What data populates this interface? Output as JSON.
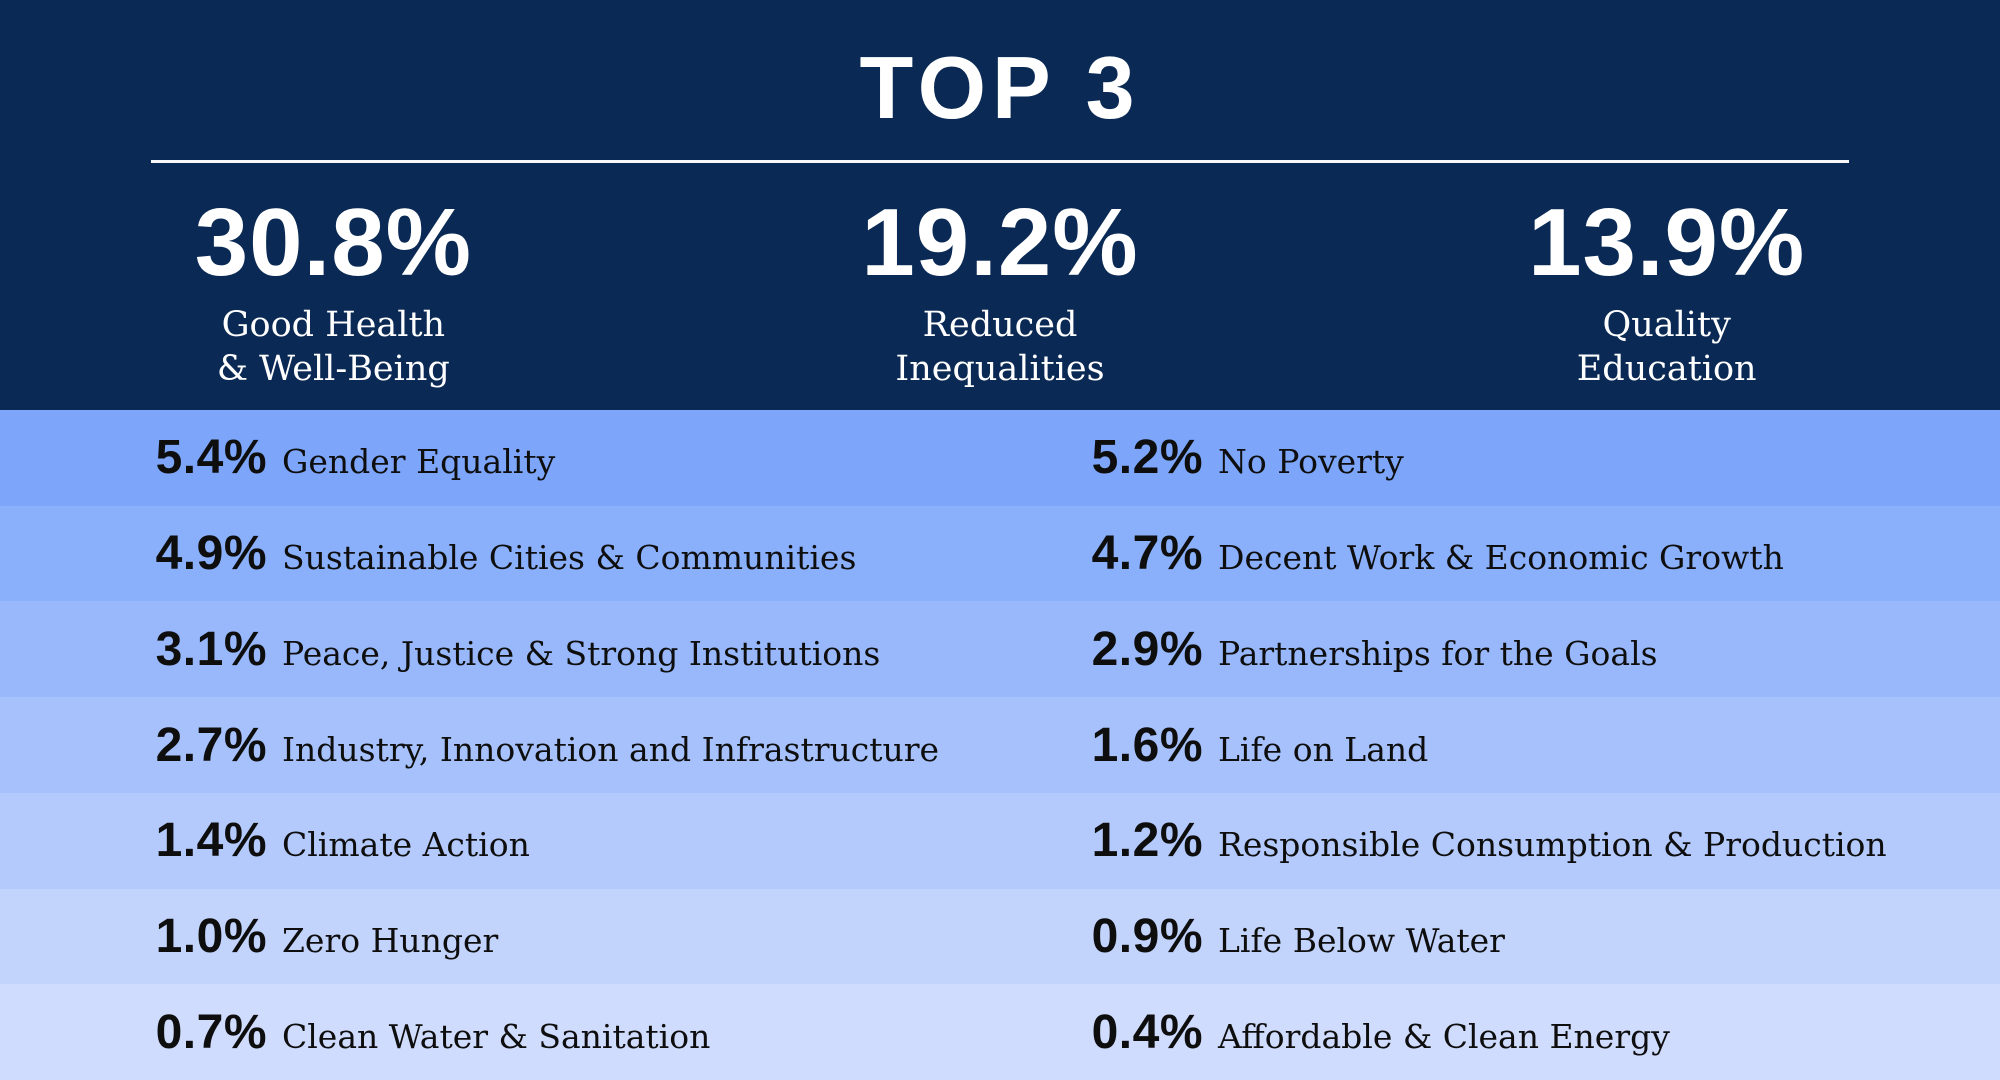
{
  "colors": {
    "navy": "#0a2a55",
    "white": "#ffffff",
    "ink": "#0e0e0e",
    "divider": "#f8f8fa",
    "row_shades": [
      "#7da6fa",
      "#8aaffb",
      "#98b8fb",
      "#a6c1fb",
      "#b4cafc",
      "#c2d3fc",
      "#d0dcfd"
    ]
  },
  "header": {
    "title": "TOP 3",
    "stats": [
      {
        "value": "30.8%",
        "label": "Good Health\n& Well-Being"
      },
      {
        "value": "19.2%",
        "label": "Reduced\nInequalities"
      },
      {
        "value": "13.9%",
        "label": "Quality\nEducation"
      }
    ]
  },
  "rows": [
    {
      "left": {
        "value": "5.4%",
        "label": "Gender Equality"
      },
      "right": {
        "value": "5.2%",
        "label": "No Poverty"
      }
    },
    {
      "left": {
        "value": "4.9%",
        "label": "Sustainable Cities & Communities"
      },
      "right": {
        "value": "4.7%",
        "label": "Decent Work & Economic Growth"
      }
    },
    {
      "left": {
        "value": "3.1%",
        "label": "Peace, Justice & Strong Institutions"
      },
      "right": {
        "value": "2.9%",
        "label": "Partnerships for the Goals"
      }
    },
    {
      "left": {
        "value": "2.7%",
        "label": "Industry, Innovation and Infrastructure"
      },
      "right": {
        "value": "1.6%",
        "label": "Life on Land"
      }
    },
    {
      "left": {
        "value": "1.4%",
        "label": "Climate Action"
      },
      "right": {
        "value": "1.2%",
        "label": "Responsible Consumption & Production"
      }
    },
    {
      "left": {
        "value": "1.0%",
        "label": "Zero Hunger"
      },
      "right": {
        "value": "0.9%",
        "label": "Life Below Water"
      }
    },
    {
      "left": {
        "value": "0.7%",
        "label": "Clean Water & Sanitation"
      },
      "right": {
        "value": "0.4%",
        "label": "Affordable & Clean Energy"
      }
    }
  ],
  "chart_data": {
    "type": "table",
    "title": "TOP 3",
    "unit": "%",
    "categories": [
      "Good Health & Well-Being",
      "Reduced Inequalities",
      "Quality Education",
      "Gender Equality",
      "No Poverty",
      "Sustainable Cities & Communities",
      "Decent Work & Economic Growth",
      "Peace, Justice & Strong Institutions",
      "Partnerships for the Goals",
      "Industry, Innovation and Infrastructure",
      "Life on Land",
      "Climate Action",
      "Responsible Consumption & Production",
      "Zero Hunger",
      "Life Below Water",
      "Clean Water & Sanitation",
      "Affordable & Clean Energy"
    ],
    "values": [
      30.8,
      19.2,
      13.9,
      5.4,
      5.2,
      4.9,
      4.7,
      3.1,
      2.9,
      2.7,
      1.6,
      1.4,
      1.2,
      1.0,
      0.9,
      0.7,
      0.4
    ]
  }
}
